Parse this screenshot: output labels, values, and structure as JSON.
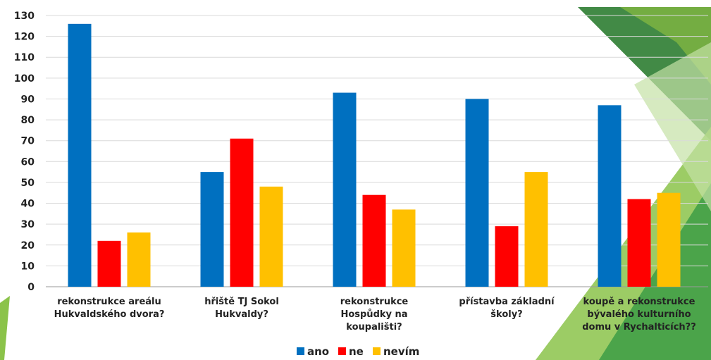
{
  "chart_data": {
    "type": "bar",
    "categories": [
      [
        "rekonstrukce areálu",
        "Hukvaldského dvora?"
      ],
      [
        "hřiště TJ Sokol",
        "Hukvaldy?"
      ],
      [
        "rekonstrukce",
        "Hospůdky na",
        "koupališti?"
      ],
      [
        "přístavba základní",
        "školy?"
      ],
      [
        "koupě a rekonstrukce",
        "bývalého kulturního",
        "domu v Rychalticích??"
      ]
    ],
    "series": [
      {
        "name": "ano",
        "color": "#0070C0",
        "values": [
          126,
          55,
          93,
          90,
          87
        ]
      },
      {
        "name": "ne",
        "color": "#FF0000",
        "values": [
          22,
          71,
          44,
          29,
          42
        ]
      },
      {
        "name": "nevím",
        "color": "#FFC000",
        "values": [
          26,
          48,
          37,
          55,
          45
        ]
      }
    ],
    "ylim": [
      0,
      130
    ],
    "yticks": [
      0,
      10,
      20,
      30,
      40,
      50,
      60,
      70,
      80,
      90,
      100,
      110,
      120,
      130
    ],
    "grid": true,
    "legend": "bottom"
  }
}
